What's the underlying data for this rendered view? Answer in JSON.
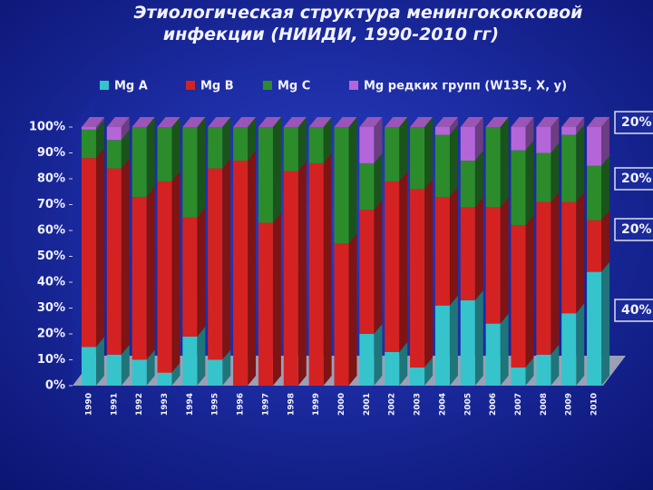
{
  "chart_data": {
    "type": "stacked_bar_3d",
    "title": "Этиологическая структура менингококковой инфекции (НИИДИ, 1990-2010 гг)",
    "categories": [
      "1990",
      "1991",
      "1992",
      "1993",
      "1994",
      "1995",
      "1996",
      "1997",
      "1998",
      "1999",
      "2000",
      "2001",
      "2002",
      "2003",
      "2004",
      "2005",
      "2006",
      "2007",
      "2008",
      "2009",
      "2010"
    ],
    "series": [
      {
        "name": "Mg A",
        "color": "#35c4cc",
        "values": [
          15,
          12,
          10,
          5,
          19,
          10,
          0,
          0,
          0,
          0,
          0,
          20,
          13,
          7,
          31,
          33,
          24,
          7,
          12,
          28,
          44
        ]
      },
      {
        "name": "Mg B",
        "color": "#d42222",
        "values": [
          73,
          72,
          63,
          74,
          46,
          74,
          87,
          63,
          83,
          86,
          55,
          48,
          66,
          69,
          42,
          36,
          45,
          55,
          59,
          43,
          20
        ]
      },
      {
        "name": "Mg C",
        "color": "#2c8c2c",
        "values": [
          11,
          11,
          27,
          21,
          35,
          16,
          13,
          37,
          17,
          14,
          45,
          18,
          21,
          24,
          24,
          18,
          31,
          29,
          19,
          26,
          21
        ]
      },
      {
        "name": "Mg редких групп (W135, X, y)",
        "color": "#b466d8",
        "values": [
          1,
          5,
          0,
          0,
          0,
          0,
          0,
          0,
          0,
          0,
          0,
          14,
          0,
          0,
          3,
          13,
          0,
          9,
          10,
          3,
          15
        ]
      }
    ],
    "ylim": [
      0,
      100
    ],
    "yticks": [
      {
        "value": 0,
        "label": "0%"
      },
      {
        "value": 10,
        "label": "10%"
      },
      {
        "value": 20,
        "label": "20%"
      },
      {
        "value": 30,
        "label": "30%"
      },
      {
        "value": 40,
        "label": "40%"
      },
      {
        "value": 50,
        "label": "50%"
      },
      {
        "value": 60,
        "label": "60%"
      },
      {
        "value": 70,
        "label": "70%"
      },
      {
        "value": 80,
        "label": "80%"
      },
      {
        "value": 90,
        "label": "90%"
      },
      {
        "value": 100,
        "label": "100%"
      }
    ],
    "annotations": [
      "20%",
      "20%",
      "20%",
      "40%"
    ]
  }
}
